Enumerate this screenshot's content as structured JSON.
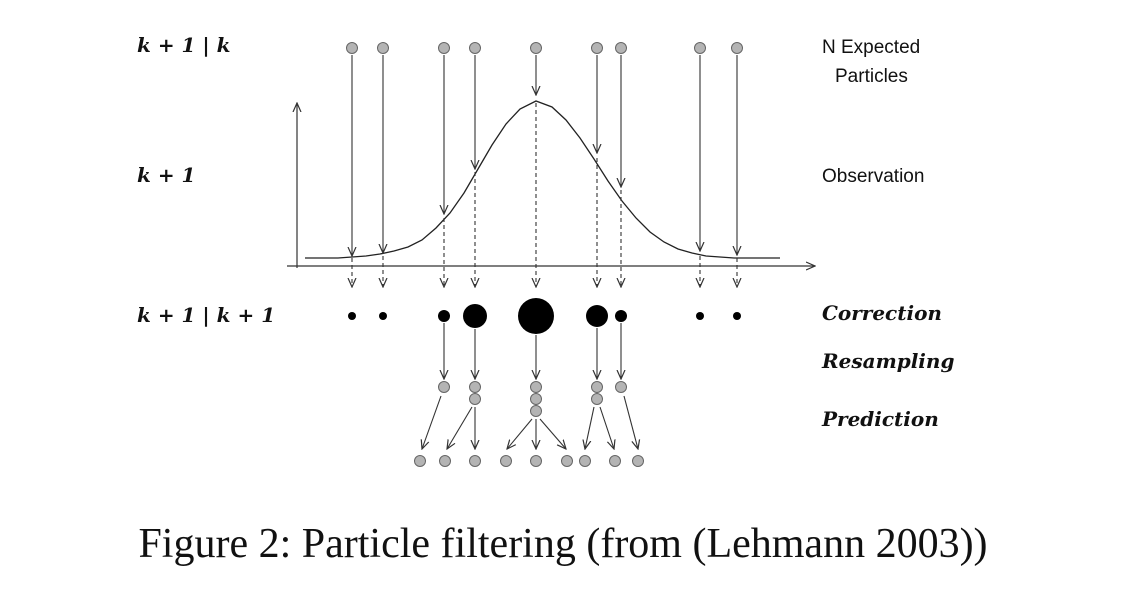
{
  "rows": {
    "prior": "k + 1 | k",
    "observation": "k + 1",
    "posterior": "k + 1 | k + 1"
  },
  "right_labels": {
    "expected_line1": "N Expected",
    "expected_line2": "Particles",
    "observation": "Observation",
    "correction": "Correction",
    "resampling": "Resampling",
    "prediction": "Prediction"
  },
  "caption": "Figure 2: Particle filtering (from (Lehmann 2003))",
  "colors": {
    "particle_fill": "#b4b4b4",
    "weighted": "#000000",
    "line": "#333333"
  }
}
